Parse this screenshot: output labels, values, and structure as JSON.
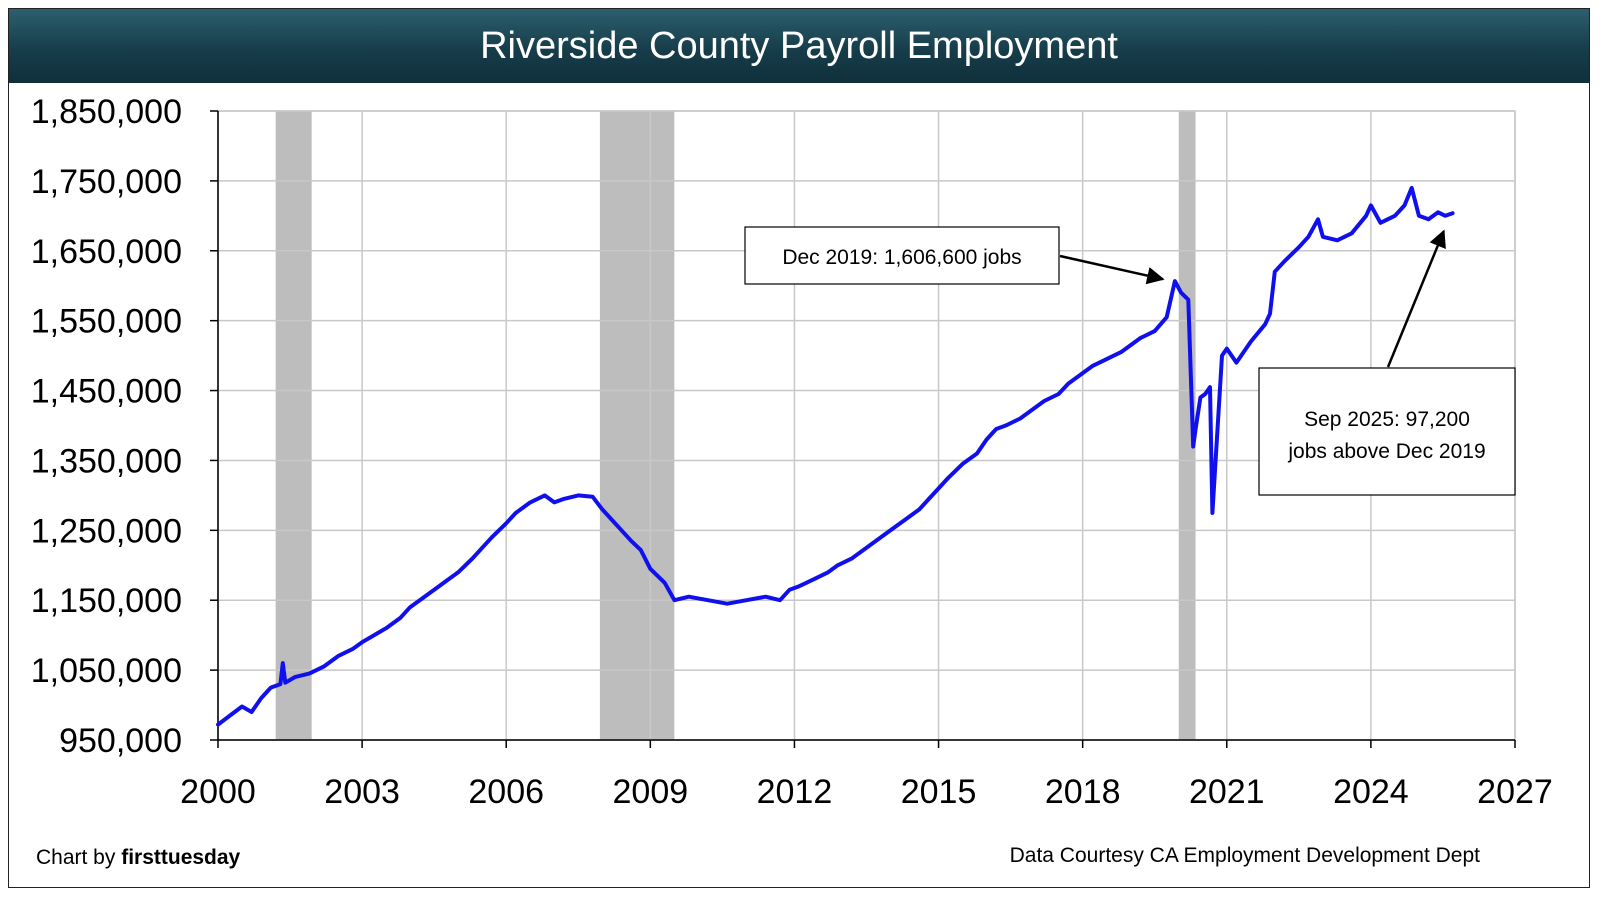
{
  "title": "Riverside County Payroll Employment",
  "footer": {
    "credit_prefix": "Chart by ",
    "credit_brand": "firsttuesday",
    "source": "Data Courtesy CA Employment Development Dept"
  },
  "colors": {
    "line": "#1010ee",
    "recession": "#bdbdbd",
    "grid": "#c8c8c8",
    "title_bg": "#173d4a"
  },
  "chart_data": {
    "type": "line",
    "title": "Riverside County Payroll Employment",
    "xlabel": "",
    "ylabel": "",
    "xlim": [
      2000,
      2027
    ],
    "ylim": [
      950000,
      1850000
    ],
    "x_ticks": [
      "2000",
      "2003",
      "2006",
      "2009",
      "2012",
      "2015",
      "2018",
      "2021",
      "2024",
      "2027"
    ],
    "y_ticks": [
      "950,000",
      "1,050,000",
      "1,150,000",
      "1,250,000",
      "1,350,000",
      "1,450,000",
      "1,550,000",
      "1,650,000",
      "1,750,000",
      "1,850,000"
    ],
    "grid": true,
    "recessions": [
      [
        2001.2,
        2001.95
      ],
      [
        2007.95,
        2009.5
      ],
      [
        2020.0,
        2020.35
      ]
    ],
    "series": [
      {
        "x": [
          2000.0,
          2000.25,
          2000.5,
          2000.7,
          2000.9,
          2001.1,
          2001.3,
          2001.35,
          2001.4,
          2001.6,
          2001.9,
          2002.2,
          2002.5,
          2002.8,
          2003.0,
          2003.2,
          2003.5,
          2003.8,
          2004.0,
          2004.3,
          2004.6,
          2005.0,
          2005.3,
          2005.5,
          2005.7,
          2006.0,
          2006.2,
          2006.5,
          2006.8,
          2007.0,
          2007.2,
          2007.5,
          2007.8,
          2008.0,
          2008.2,
          2008.4,
          2008.6,
          2008.8,
          2009.0,
          2009.3,
          2009.5,
          2009.8,
          2010.2,
          2010.6,
          2011.0,
          2011.4,
          2011.7,
          2011.9,
          2012.1,
          2012.4,
          2012.7,
          2012.9,
          2013.2,
          2013.5,
          2013.7,
          2014.0,
          2014.3,
          2014.6,
          2014.8,
          2015.0,
          2015.2,
          2015.5,
          2015.8,
          2016.0,
          2016.2,
          2016.4,
          2016.7,
          2016.9,
          2017.2,
          2017.5,
          2017.7,
          2017.9,
          2018.2,
          2018.5,
          2018.8,
          2019.0,
          2019.2,
          2019.5,
          2019.75,
          2019.92,
          2020.05,
          2020.2,
          2020.3,
          2020.35,
          2020.45,
          2020.55,
          2020.65,
          2020.7,
          2020.9,
          2021.0,
          2021.2,
          2021.5,
          2021.8,
          2021.9,
          2022.0,
          2022.2,
          2022.5,
          2022.7,
          2022.9,
          2023.0,
          2023.3,
          2023.6,
          2023.9,
          2024.0,
          2024.2,
          2024.5,
          2024.7,
          2024.85,
          2025.0,
          2025.2,
          2025.4,
          2025.55,
          2025.7
        ],
        "y": [
          972000,
          985000,
          998000,
          990000,
          1010000,
          1025000,
          1030000,
          1060000,
          1032000,
          1040000,
          1045000,
          1055000,
          1070000,
          1080000,
          1090000,
          1098000,
          1110000,
          1125000,
          1140000,
          1155000,
          1170000,
          1190000,
          1210000,
          1225000,
          1240000,
          1260000,
          1275000,
          1290000,
          1300000,
          1290000,
          1295000,
          1300000,
          1298000,
          1280000,
          1265000,
          1250000,
          1235000,
          1222000,
          1195000,
          1175000,
          1150000,
          1155000,
          1150000,
          1145000,
          1150000,
          1155000,
          1150000,
          1165000,
          1170000,
          1180000,
          1190000,
          1200000,
          1210000,
          1225000,
          1235000,
          1250000,
          1265000,
          1280000,
          1295000,
          1310000,
          1325000,
          1345000,
          1360000,
          1380000,
          1395000,
          1400000,
          1410000,
          1420000,
          1435000,
          1445000,
          1460000,
          1470000,
          1485000,
          1495000,
          1505000,
          1515000,
          1525000,
          1535000,
          1555000,
          1606600,
          1590000,
          1580000,
          1370000,
          1395000,
          1440000,
          1445000,
          1455000,
          1275000,
          1500000,
          1510000,
          1490000,
          1520000,
          1545000,
          1560000,
          1620000,
          1635000,
          1655000,
          1670000,
          1695000,
          1670000,
          1665000,
          1675000,
          1700000,
          1715000,
          1690000,
          1700000,
          1715000,
          1740000,
          1700000,
          1695000,
          1705000,
          1700000,
          1703800
        ]
      }
    ],
    "annotations": [
      {
        "text": "Dec 2019: 1,606,600 jobs",
        "x": 2019.92,
        "y": 1606600
      },
      {
        "text": "Sep 2025: 97,200 jobs above Dec 2019",
        "lines": [
          "Sep 2025: 97,200",
          "jobs above Dec 2019"
        ],
        "x": 2025.6,
        "y": 1703800
      }
    ]
  }
}
